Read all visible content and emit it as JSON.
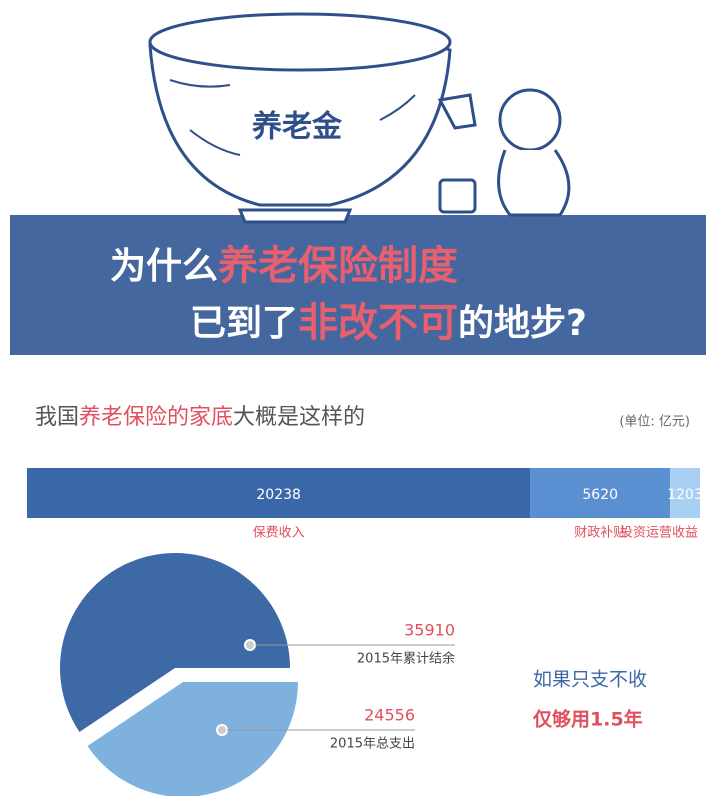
{
  "header": {
    "badge": "养老金",
    "title_line1": [
      "为什么",
      "养老保险制度"
    ],
    "title_line2": [
      "已到了",
      "非改不可",
      "的地步?"
    ]
  },
  "section": {
    "heading": [
      "我国",
      "养老保险的家底",
      "大概是这样的"
    ],
    "unit": "(单位: 亿元)"
  },
  "chart_data": [
    {
      "type": "bar",
      "orientation": "horizontal",
      "stacked": true,
      "series": [
        {
          "name": "保费收入",
          "color": "#3a67a7",
          "values": [
            20238
          ]
        },
        {
          "name": "财政补贴",
          "color": "#5a8fd1",
          "values": [
            5620
          ]
        },
        {
          "name": "投资运营收益",
          "color": "#a9d0f2",
          "values": [
            1203
          ]
        }
      ]
    },
    {
      "type": "pie",
      "categories": [
        "2015年累计结余",
        "2015年总支出"
      ],
      "values": [
        35910,
        24556
      ],
      "colors": [
        "#3d69a6",
        "#7fb1de"
      ],
      "annotations": [
        "如果只支不收",
        "仅够用1.5年"
      ]
    }
  ]
}
